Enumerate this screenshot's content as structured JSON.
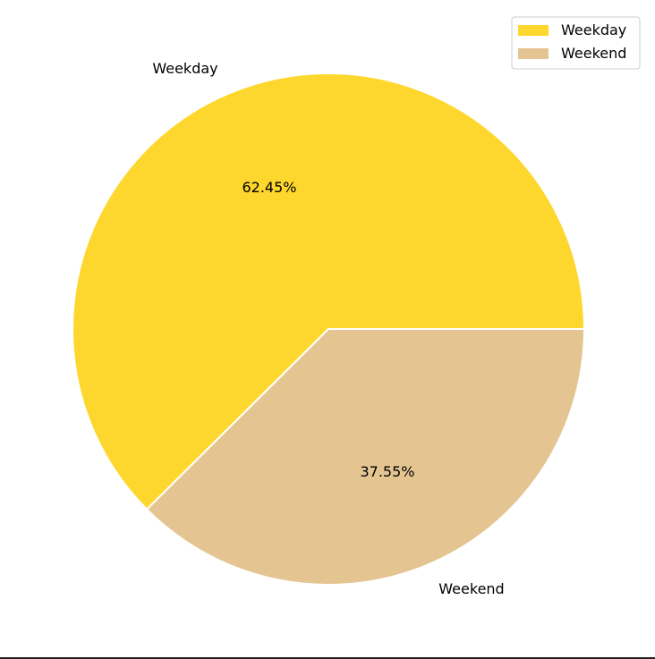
{
  "chart_data": {
    "type": "pie",
    "title": "",
    "labels": [
      "Weekday",
      "Weekend"
    ],
    "values": [
      62.45,
      37.55
    ],
    "autopct_labels": [
      "62.45%",
      "37.55%"
    ],
    "colors": [
      "#FED72E",
      "#E4C592"
    ],
    "edge_color": "#FFFFFF",
    "legend": {
      "placement": "upper-right",
      "entries": [
        "Weekday",
        "Weekend"
      ]
    }
  }
}
